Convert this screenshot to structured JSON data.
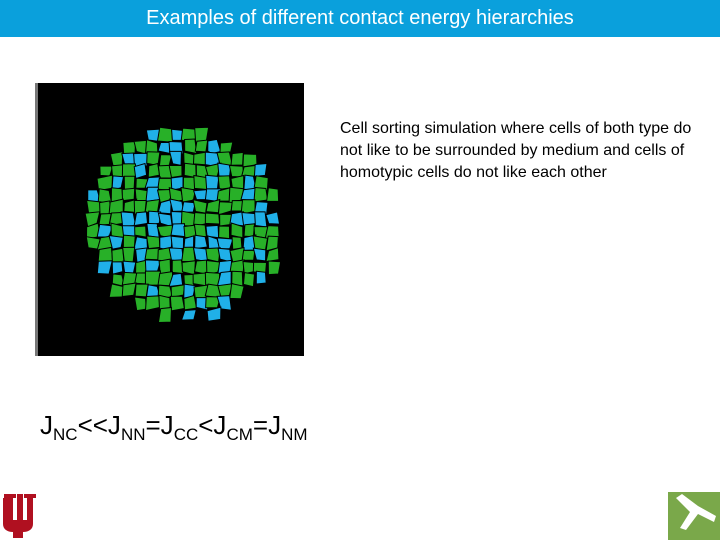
{
  "header": {
    "title": "Examples of different contact energy hierarchies"
  },
  "description": "Cell sorting simulation where cells of both type do not like to be surrounded by medium and cells of homotypic cells do not like each other",
  "formula": [
    {
      "text": "J",
      "sub": "NC"
    },
    {
      "text": "<<J",
      "sub": "NN"
    },
    {
      "text": "=J",
      "sub": "CC"
    },
    {
      "text": "<J",
      "sub": "CM"
    },
    {
      "text": "=J",
      "sub": "NM"
    }
  ]
}
